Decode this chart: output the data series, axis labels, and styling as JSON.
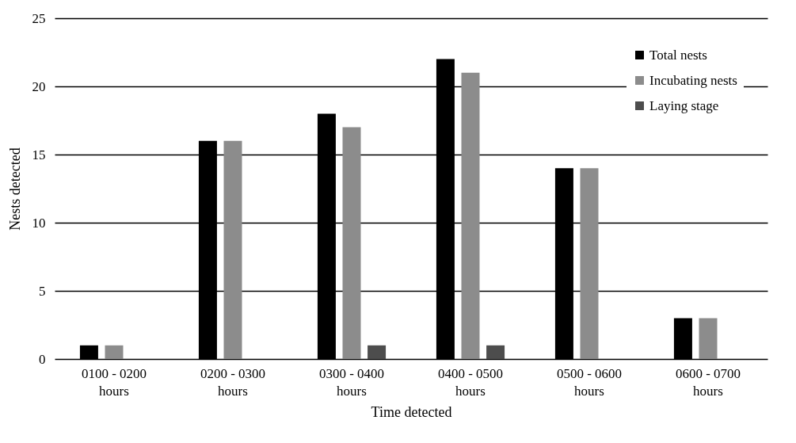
{
  "chart_data": {
    "type": "bar",
    "xlabel": "Time detected",
    "ylabel": "Nests detected",
    "categories": [
      "0100 - 0200 hours",
      "0200 - 0300 hours",
      "0300 - 0400 hours",
      "0400 - 0500 hours",
      "0500 - 0600 hours",
      "0600 - 0700 hours"
    ],
    "series": [
      {
        "name": "Total nests",
        "color": "#000000",
        "values": [
          1,
          16,
          18,
          22,
          14,
          3
        ]
      },
      {
        "name": "Incubating nests",
        "color": "#8c8c8c",
        "values": [
          1,
          16,
          17,
          21,
          14,
          3
        ]
      },
      {
        "name": "Laying stage",
        "color": "#4d4d4d",
        "values": [
          0,
          0,
          1,
          1,
          0,
          0
        ]
      }
    ],
    "ylim": [
      0,
      25
    ],
    "yticks": [
      0,
      5,
      10,
      15,
      20,
      25
    ],
    "grid": "y",
    "legend": "top right"
  }
}
